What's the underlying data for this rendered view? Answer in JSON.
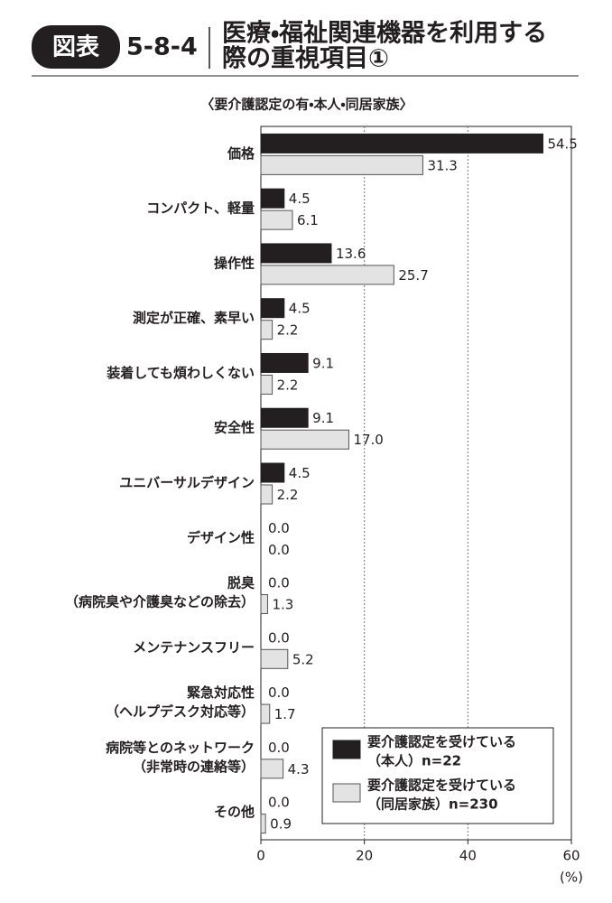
{
  "chart_data": {
    "type": "hbar",
    "figure_label": "図表",
    "figure_number": "5-8-4",
    "title": [
      "医療・福祉関連機器を利用する",
      "際の重視項目①"
    ],
    "subtitle": "〈要介護認定の有・本人・同居家族〉",
    "x_unit": "(%)",
    "categories": [
      [
        "価格"
      ],
      [
        "コンパクト、軽量"
      ],
      [
        "操作性"
      ],
      [
        "測定が正確、素早い"
      ],
      [
        "装着しても煩わしくない"
      ],
      [
        "安全性"
      ],
      [
        "ユニバーサルデザイン"
      ],
      [
        "デザイン性"
      ],
      [
        "脱臭",
        "（病院臭や介護臭などの除去）"
      ],
      [
        "メンテナンスフリー"
      ],
      [
        "緊急対応性",
        "（ヘルプデスク対応等）"
      ],
      [
        "病院等とのネットワーク",
        "（非常時の連絡等）"
      ],
      [
        "その他"
      ]
    ],
    "series": [
      {
        "name": [
          "要介護認定を受けている",
          "（本人）n=22"
        ],
        "color": "#231f20",
        "values": [
          54.5,
          4.5,
          13.6,
          4.5,
          9.1,
          9.1,
          4.5,
          0,
          0,
          0,
          0,
          0,
          0
        ],
        "value_labels": [
          "54.5",
          "4.5",
          "13.6",
          "4.5",
          "9.1",
          "9.1",
          "4.5",
          "0.0",
          "0.0",
          "0.0",
          "0.0",
          "0.0",
          "0.0"
        ]
      },
      {
        "name": [
          "要介護認定を受けている",
          "（同居家族）n=230"
        ],
        "color": "#e3e3e3",
        "values": [
          31.3,
          6.1,
          25.7,
          2.2,
          2.2,
          17,
          2.2,
          0,
          1.3,
          5.2,
          1.7,
          4.3,
          0.9
        ],
        "value_labels": [
          "31.3",
          "6.1",
          "25.7",
          "2.2",
          "2.2",
          "17.0",
          "2.2",
          "0.0",
          "1.3",
          "5.2",
          "1.7",
          "4.3",
          "0.9"
        ]
      }
    ],
    "xlim": [
      0,
      60
    ],
    "xticks": [
      0,
      20,
      40,
      60
    ],
    "grid": true,
    "legend": "lower-right"
  }
}
